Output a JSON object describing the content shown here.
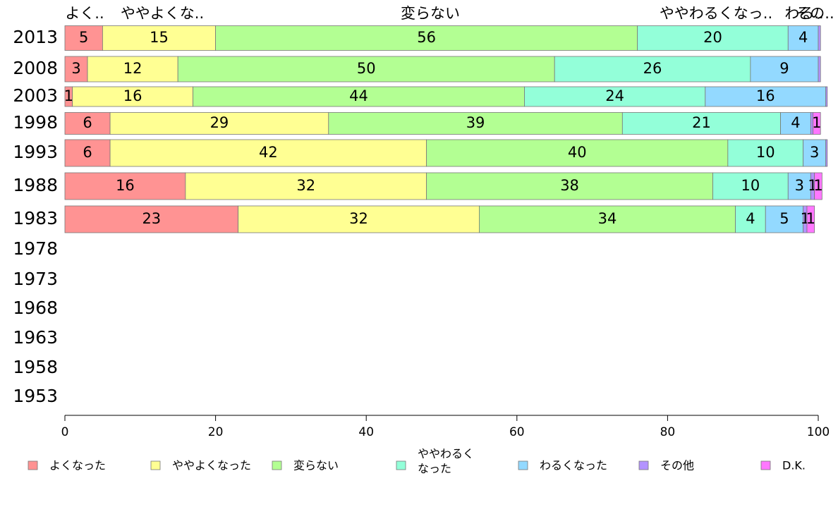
{
  "chart_data": {
    "type": "bar",
    "orientation": "horizontal",
    "stacked": true,
    "categories": [
      "2013",
      "2008",
      "2003",
      "1998",
      "1993",
      "1988",
      "1983",
      "1978",
      "1973",
      "1968",
      "1963",
      "1958",
      "1953"
    ],
    "series": [
      {
        "name": "よくなった",
        "color": "#ff9393",
        "values": [
          5,
          3,
          1,
          6,
          6,
          16,
          23,
          null,
          null,
          null,
          null,
          null,
          null
        ]
      },
      {
        "name": "ややよくなった",
        "color": "#ffff93",
        "values": [
          15,
          12,
          16,
          29,
          42,
          32,
          32,
          null,
          null,
          null,
          null,
          null,
          null
        ]
      },
      {
        "name": "変らない",
        "color": "#b3ff93",
        "values": [
          56,
          50,
          44,
          39,
          40,
          38,
          34,
          null,
          null,
          null,
          null,
          null,
          null
        ]
      },
      {
        "name": "ややわるくなった",
        "color": "#93ffd9",
        "values": [
          20,
          26,
          24,
          21,
          10,
          10,
          4,
          null,
          null,
          null,
          null,
          null,
          null
        ]
      },
      {
        "name": "わるくなった",
        "color": "#93d9ff",
        "values": [
          4,
          9,
          16,
          4,
          3,
          3,
          5,
          null,
          null,
          null,
          null,
          null,
          null
        ]
      },
      {
        "name": "その他",
        "color": "#b393ff",
        "values": [
          0.3,
          0.3,
          0.2,
          0.3,
          0.2,
          0.5,
          0.5,
          null,
          null,
          null,
          null,
          null,
          null
        ]
      },
      {
        "name": "D.K.",
        "color": "#ff77ff",
        "values": [
          0,
          0,
          0,
          1,
          0,
          1,
          1,
          null,
          null,
          null,
          null,
          null,
          null
        ]
      }
    ],
    "value_labels": [
      [
        "5",
        "15",
        "56",
        "20",
        "4",
        "",
        ""
      ],
      [
        "3",
        "12",
        "50",
        "26",
        "9",
        "",
        ""
      ],
      [
        "1",
        "16",
        "44",
        "24",
        "16",
        "",
        ""
      ],
      [
        "6",
        "29",
        "39",
        "21",
        "4",
        "",
        "1"
      ],
      [
        "6",
        "42",
        "40",
        "10",
        "3",
        "",
        ""
      ],
      [
        "16",
        "32",
        "38",
        "10",
        "3",
        "1",
        "1"
      ],
      [
        "23",
        "32",
        "34",
        "4",
        "5",
        "1",
        "1"
      ]
    ],
    "top_labels": [
      "よく..",
      "ややよくな..",
      "変らない",
      "ややわるくなっ..",
      "わる..",
      "その.."
    ],
    "xlim": [
      0,
      100
    ],
    "xticks": [
      0,
      20,
      40,
      60,
      80,
      100
    ],
    "legend": {
      "position": "bottom",
      "items": [
        {
          "label": "よくなった",
          "color": "#ff9393"
        },
        {
          "label": "ややよくなった",
          "color": "#ffff93"
        },
        {
          "label": "変らない",
          "color": "#b3ff93"
        },
        {
          "label_lines": [
            "ややわるく",
            "なった"
          ],
          "color": "#93ffd9"
        },
        {
          "label": "わるくなった",
          "color": "#93d9ff"
        },
        {
          "label": "その他",
          "color": "#b393ff"
        },
        {
          "label": "D.K.",
          "color": "#ff77ff"
        }
      ]
    }
  }
}
